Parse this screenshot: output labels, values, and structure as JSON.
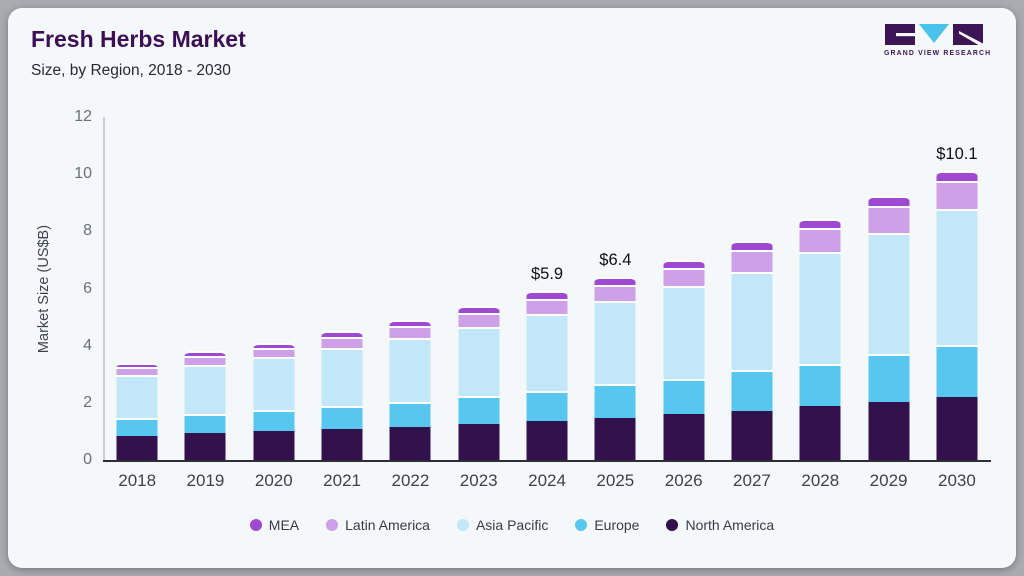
{
  "header": {
    "title": "Fresh Herbs Market",
    "subtitle": "Size, by Region, 2018 - 2030"
  },
  "logo": {
    "text": "GRAND VIEW RESEARCH",
    "mark_colors": {
      "blocks": "#3d1456",
      "triangle": "#49c3ea"
    }
  },
  "chart_data": {
    "type": "bar",
    "stacked": true,
    "title": "Fresh Herbs Market Size, by Region, 2018 - 2030",
    "xlabel": "",
    "ylabel": "Market Size (US$B)",
    "ylim": [
      0,
      12
    ],
    "yticks": [
      0,
      2,
      4,
      6,
      8,
      10,
      12
    ],
    "grid": false,
    "legend_position": "bottom",
    "categories": [
      "2018",
      "2019",
      "2020",
      "2021",
      "2022",
      "2023",
      "2024",
      "2025",
      "2026",
      "2027",
      "2028",
      "2029",
      "2030"
    ],
    "series": [
      {
        "name": "North America",
        "color": "#33114d",
        "values": [
          0.85,
          0.93,
          1.0,
          1.1,
          1.15,
          1.26,
          1.35,
          1.47,
          1.61,
          1.73,
          1.88,
          2.02,
          2.21
        ]
      },
      {
        "name": "Europe",
        "color": "#57c7f0",
        "values": [
          0.62,
          0.68,
          0.74,
          0.8,
          0.89,
          0.97,
          1.06,
          1.2,
          1.24,
          1.41,
          1.49,
          1.68,
          1.81
        ]
      },
      {
        "name": "Asia Pacific",
        "color": "#c1e7f8",
        "values": [
          1.5,
          1.7,
          1.85,
          2.02,
          2.24,
          2.41,
          2.7,
          2.89,
          3.25,
          3.45,
          3.9,
          4.24,
          4.75
        ]
      },
      {
        "name": "Latin America",
        "color": "#cda0e8",
        "values": [
          0.29,
          0.33,
          0.34,
          0.39,
          0.41,
          0.52,
          0.54,
          0.57,
          0.62,
          0.76,
          0.84,
          0.96,
          0.98
        ]
      },
      {
        "name": "MEA",
        "color": "#9f48d2",
        "values": [
          0.14,
          0.16,
          0.17,
          0.19,
          0.21,
          0.24,
          0.25,
          0.27,
          0.28,
          0.3,
          0.34,
          0.35,
          0.35
        ]
      }
    ],
    "totals": [
      3.4,
      3.8,
      4.1,
      4.5,
      4.9,
      5.4,
      5.9,
      6.4,
      7.0,
      7.65,
      8.45,
      9.25,
      10.1
    ],
    "annotations": [
      {
        "category": "2024",
        "text": "$5.9"
      },
      {
        "category": "2025",
        "text": "$6.4"
      },
      {
        "category": "2030",
        "text": "$10.1"
      }
    ],
    "legend": [
      "MEA",
      "Latin America",
      "Asia Pacific",
      "Europe",
      "North America"
    ]
  }
}
